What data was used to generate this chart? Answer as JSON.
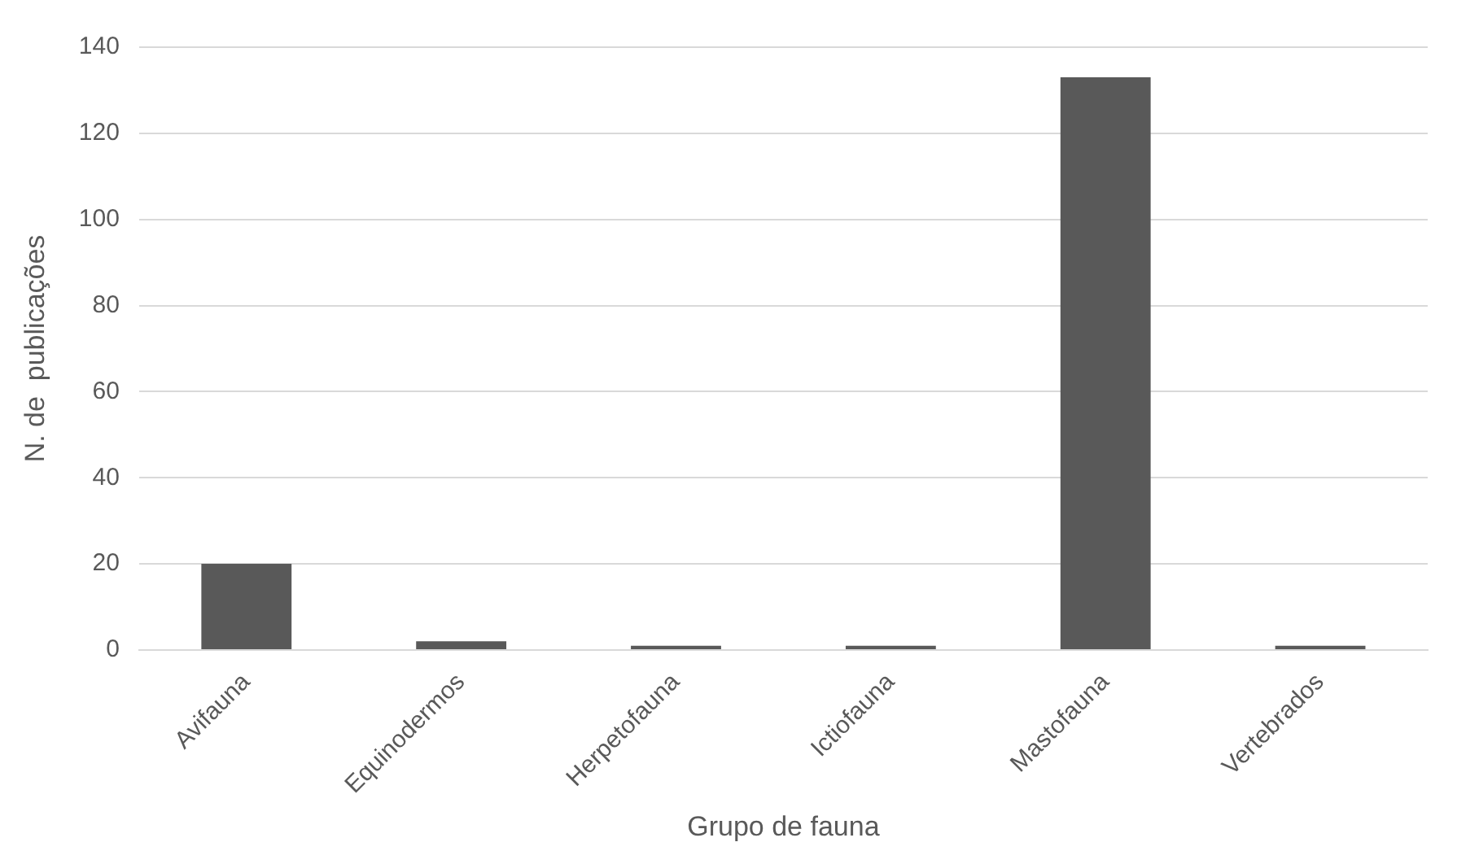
{
  "chart_data": {
    "type": "bar",
    "xlabel": "Grupo de fauna",
    "ylabel": "N. de  publicações",
    "categories": [
      "Avifauna",
      "Equinodermos",
      "Herpetofauna",
      "Ictiofauna",
      "Mastofauna",
      "Vertebrados"
    ],
    "values": [
      20,
      2,
      1,
      1,
      133,
      1
    ],
    "color": "#595959",
    "ylim": [
      0,
      140
    ],
    "yticks": [
      0,
      20,
      40,
      60,
      80,
      100,
      120,
      140
    ],
    "grid": "y",
    "legend": false
  }
}
